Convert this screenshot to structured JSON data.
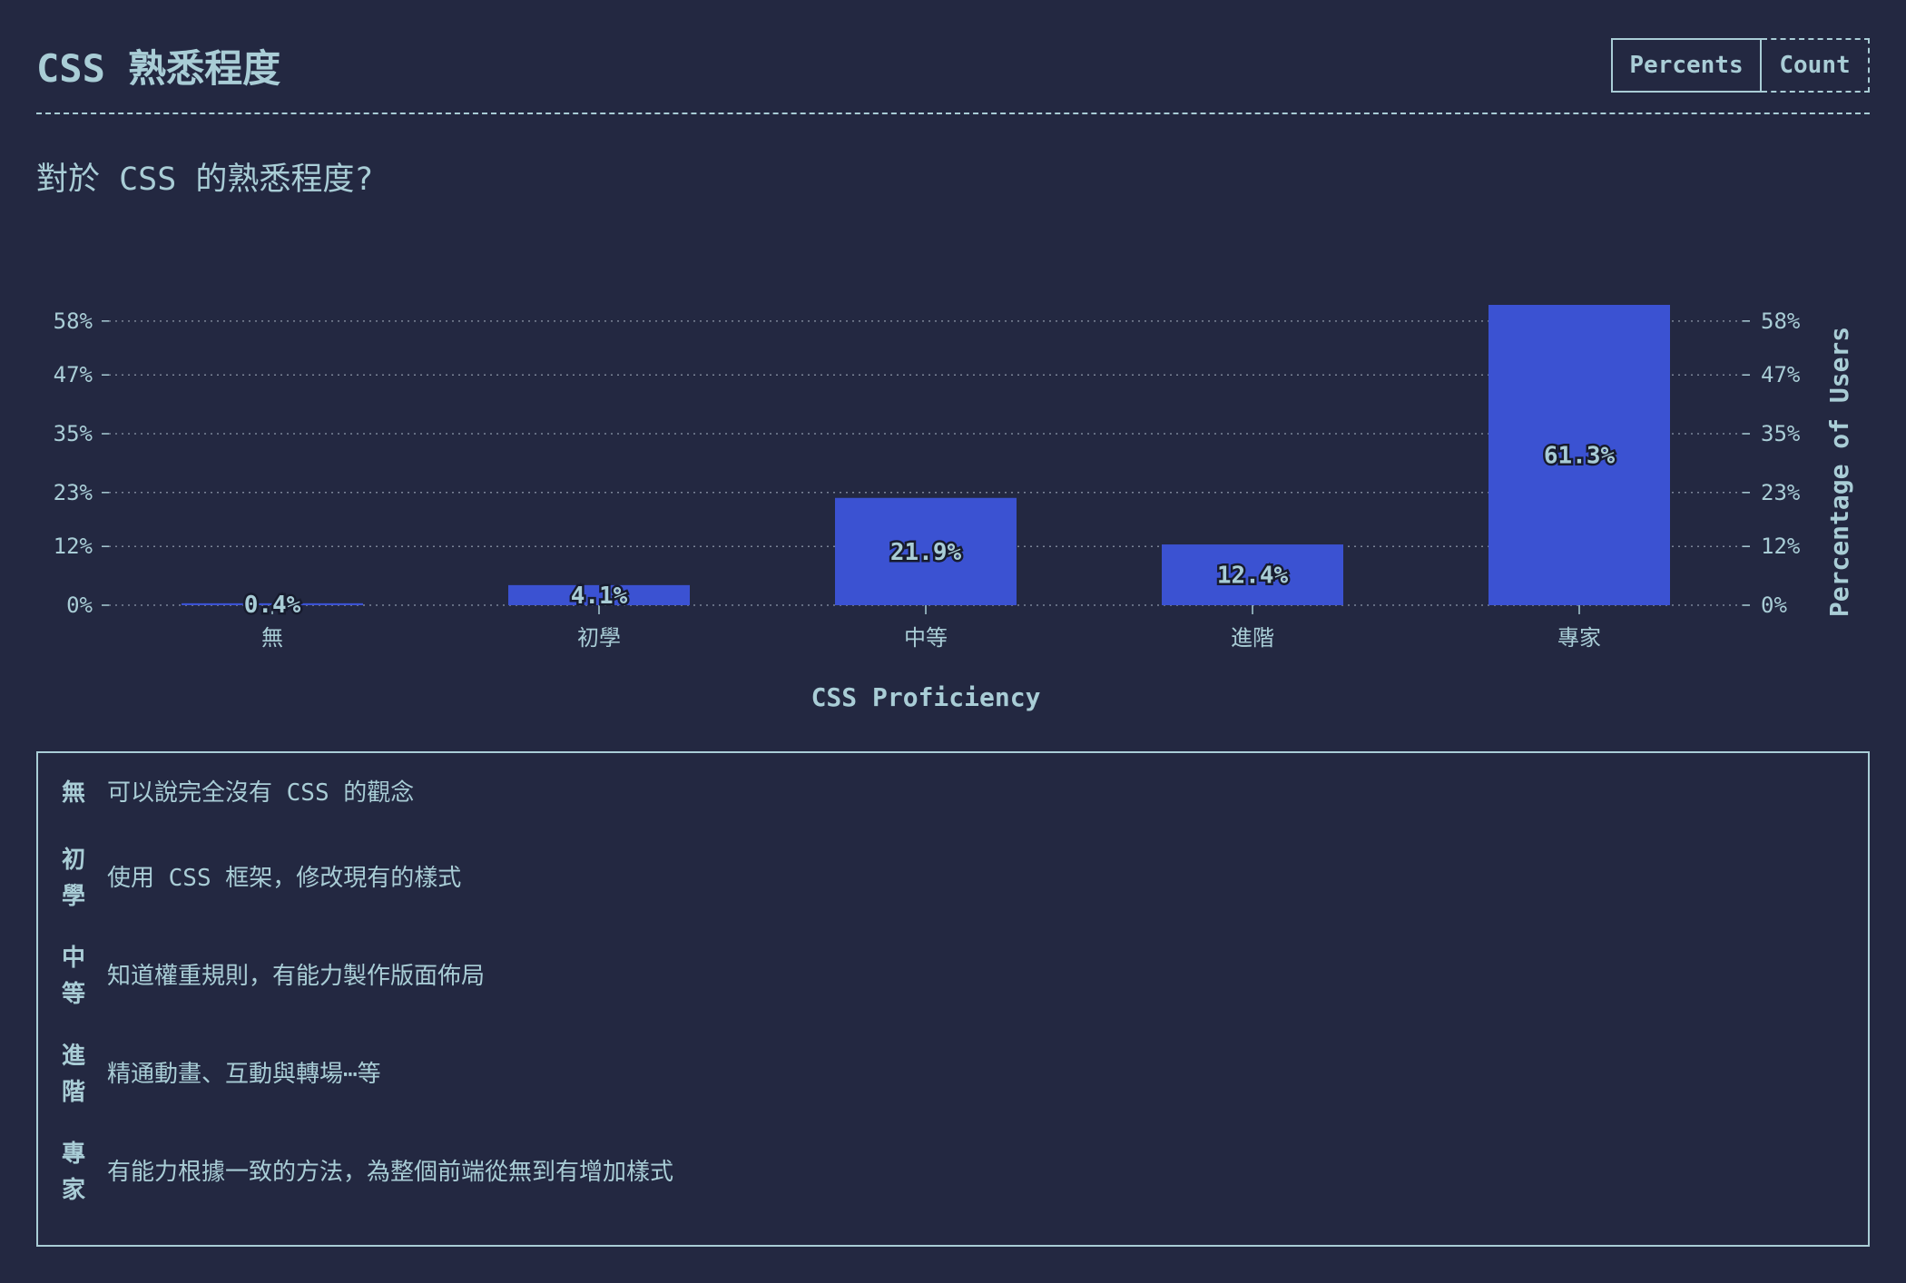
{
  "header": {
    "title": "CSS 熟悉程度",
    "toggle": {
      "percents_label": "Percents",
      "count_label": "Count",
      "active": "Percents"
    }
  },
  "question": "對於 CSS 的熟悉程度?",
  "colors": {
    "background": "#232841",
    "text": "#a9cdd6",
    "bar": "#3b52d2",
    "grid": "#7b8497"
  },
  "chart_data": {
    "type": "bar",
    "categories": [
      "無",
      "初學",
      "中等",
      "進階",
      "專家"
    ],
    "values": [
      0.4,
      4.1,
      21.9,
      12.4,
      61.3
    ],
    "value_labels": [
      "0.4%",
      "4.1%",
      "21.9%",
      "12.4%",
      "61.3%"
    ],
    "y_ticks": [
      0,
      12,
      23,
      35,
      47,
      58
    ],
    "y_tick_labels": [
      "0%",
      "12%",
      "23%",
      "35%",
      "47%",
      "58%"
    ],
    "ylim": [
      0,
      61.3
    ],
    "xlabel": "CSS Proficiency",
    "ylabel": "Percentage of Users",
    "grid": true
  },
  "legend": [
    {
      "term": "無",
      "desc": "可以說完全沒有 CSS 的觀念"
    },
    {
      "term": "初學",
      "desc": "使用 CSS 框架，修改現有的樣式"
    },
    {
      "term": "中等",
      "desc": "知道權重規則，有能力製作版面佈局"
    },
    {
      "term": "進階",
      "desc": "精通動畫、互動與轉場⋯等"
    },
    {
      "term": "專家",
      "desc": "有能力根據一致的方法，為整個前端從無到有增加樣式"
    }
  ]
}
